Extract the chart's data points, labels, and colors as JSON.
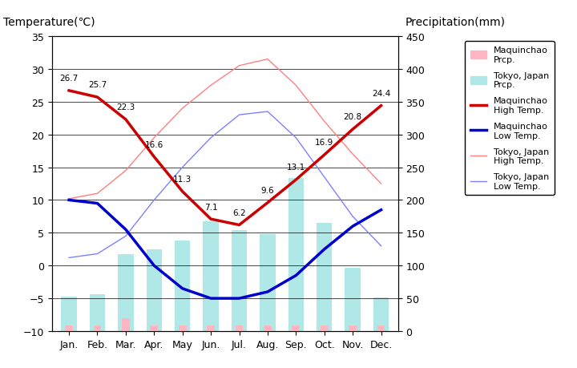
{
  "months": [
    "Jan.",
    "Feb.",
    "Mar.",
    "Apr.",
    "May",
    "Jun.",
    "Jul.",
    "Aug.",
    "Sep.",
    "Oct.",
    "Nov.",
    "Dec."
  ],
  "maquinchao_prcp": [
    9,
    9,
    20,
    9,
    9,
    9,
    9,
    9,
    9,
    9,
    9,
    9
  ],
  "tokyo_prcp": [
    52,
    56,
    118,
    125,
    138,
    168,
    154,
    148,
    234,
    165,
    97,
    51
  ],
  "maquinchao_high": [
    26.7,
    25.7,
    22.3,
    16.6,
    11.3,
    7.1,
    6.2,
    9.6,
    13.1,
    16.9,
    20.8,
    24.4
  ],
  "maquinchao_low": [
    10.0,
    9.5,
    5.5,
    0.0,
    -3.5,
    -5.0,
    -5.0,
    -4.0,
    -1.5,
    2.5,
    6.0,
    8.5
  ],
  "tokyo_high": [
    10.2,
    11.0,
    14.5,
    19.5,
    24.0,
    27.5,
    30.5,
    31.5,
    27.5,
    22.0,
    17.0,
    12.5
  ],
  "tokyo_low": [
    1.2,
    1.8,
    4.5,
    10.0,
    15.0,
    19.5,
    23.0,
    23.5,
    19.5,
    13.5,
    7.5,
    3.0
  ],
  "maquinchao_prcp_color": "#ffb6c1",
  "tokyo_prcp_color": "#b0e8e8",
  "maquinchao_high_color": "#cc0000",
  "maquinchao_low_color": "#0000cc",
  "tokyo_high_color": "#ff8080",
  "tokyo_low_color": "#8080ff",
  "plot_bg": "#c8c8c8",
  "ylim_temp": [
    -10,
    35
  ],
  "ylim_prcp": [
    0,
    450
  ],
  "title_left": "Temperature(℃)",
  "title_right": "Precipitation(mm)"
}
